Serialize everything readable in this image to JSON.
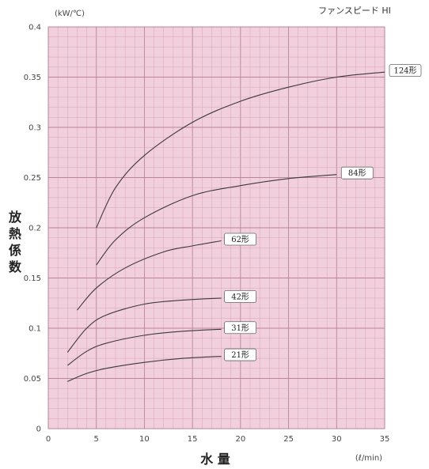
{
  "chart_data": {
    "type": "line",
    "title": "ファンスピード HI",
    "ylabel": "放熱係数",
    "yunit": "(kW/℃)",
    "xlabel": "水 量",
    "xunit": "(ℓ/min)",
    "xlim": [
      0,
      35
    ],
    "ylim": [
      0,
      0.4
    ],
    "xticks": [
      0,
      5,
      10,
      15,
      20,
      25,
      30,
      35
    ],
    "yticks": [
      0,
      0.05,
      0.1,
      0.15,
      0.2,
      0.25,
      0.3,
      0.35,
      0.4
    ],
    "ytick_labels": [
      "0",
      "0.05",
      "0.1",
      "0.15",
      "0.2",
      "0.25",
      "0.3",
      "0.35",
      "0.4"
    ],
    "grid": true,
    "colors": {
      "plot_bg": "#f2cfdc",
      "grid_minor": "#d7a6b8",
      "grid_major": "#b98599",
      "line": "#3a3a3a"
    },
    "series": [
      {
        "name": "124形",
        "x": [
          5,
          7,
          10,
          15,
          20,
          25,
          30,
          35
        ],
        "y": [
          0.2,
          0.24,
          0.272,
          0.305,
          0.326,
          0.34,
          0.35,
          0.355
        ]
      },
      {
        "name": "84形",
        "x": [
          5,
          7,
          10,
          15,
          20,
          25,
          30
        ],
        "y": [
          0.163,
          0.188,
          0.21,
          0.232,
          0.242,
          0.249,
          0.253
        ]
      },
      {
        "name": "62形",
        "x": [
          3,
          5,
          8,
          12,
          15,
          18
        ],
        "y": [
          0.118,
          0.14,
          0.16,
          0.176,
          0.182,
          0.187
        ]
      },
      {
        "name": "42形",
        "x": [
          2,
          4,
          6,
          10,
          14,
          18
        ],
        "y": [
          0.076,
          0.1,
          0.113,
          0.124,
          0.128,
          0.13
        ]
      },
      {
        "name": "31形",
        "x": [
          2,
          4,
          6,
          10,
          14,
          18
        ],
        "y": [
          0.063,
          0.077,
          0.085,
          0.093,
          0.097,
          0.099
        ]
      },
      {
        "name": "21形",
        "x": [
          2,
          4,
          6,
          10,
          14,
          18
        ],
        "y": [
          0.047,
          0.055,
          0.06,
          0.066,
          0.07,
          0.072
        ]
      }
    ]
  }
}
